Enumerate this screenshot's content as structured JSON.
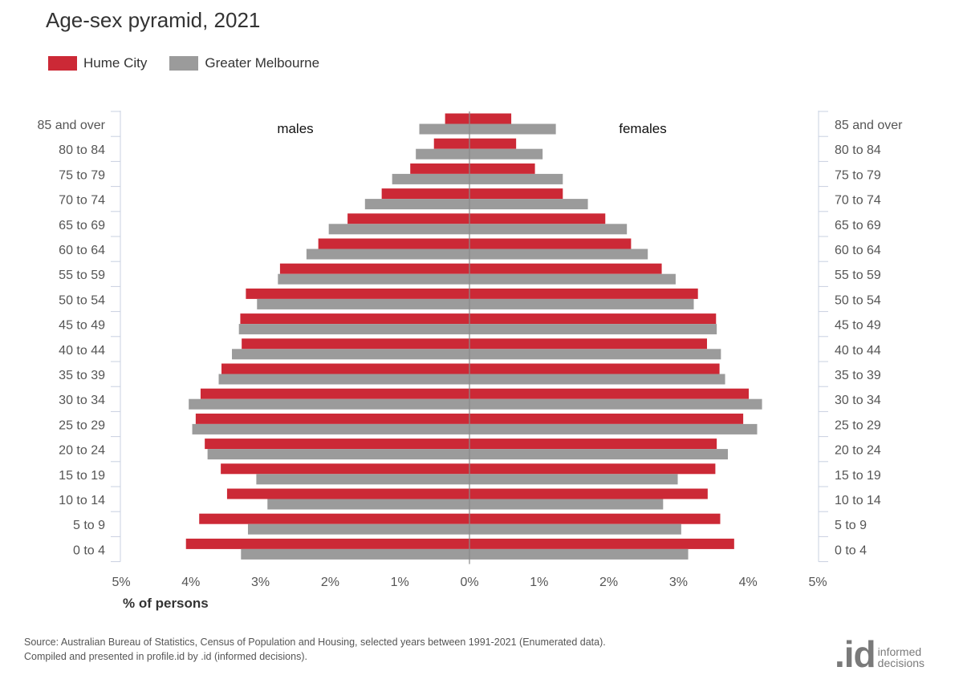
{
  "chart_data": {
    "type": "bar",
    "orientation": "horizontal-pyramid",
    "title": "Age-sex pyramid, 2021",
    "xlabel": "% of persons",
    "left_label": "males",
    "right_label": "females",
    "xlim": [
      0,
      5
    ],
    "ticks": [
      "5%",
      "4%",
      "3%",
      "2%",
      "1%",
      "0%",
      "1%",
      "2%",
      "3%",
      "4%",
      "5%"
    ],
    "categories": [
      "85 and over",
      "80 to 84",
      "75 to 79",
      "70 to 74",
      "65 to 69",
      "60 to 64",
      "55 to 59",
      "50 to 54",
      "45 to 49",
      "40 to 44",
      "35 to 39",
      "30 to 34",
      "25 to 29",
      "20 to 24",
      "15 to 19",
      "10 to 14",
      "5 to 9",
      "0 to 4"
    ],
    "series": [
      {
        "name": "Hume City",
        "color": "#cc2936",
        "males": [
          0.35,
          0.51,
          0.85,
          1.26,
          1.75,
          2.17,
          2.72,
          3.21,
          3.29,
          3.27,
          3.56,
          3.86,
          3.93,
          3.8,
          3.57,
          3.48,
          3.88,
          4.07
        ],
        "females": [
          0.6,
          0.67,
          0.94,
          1.34,
          1.95,
          2.32,
          2.76,
          3.28,
          3.54,
          3.41,
          3.59,
          4.01,
          3.93,
          3.55,
          3.53,
          3.42,
          3.6,
          3.8
        ]
      },
      {
        "name": "Greater Melbourne",
        "color": "#9b9b9b",
        "males": [
          0.72,
          0.77,
          1.11,
          1.5,
          2.02,
          2.34,
          2.75,
          3.05,
          3.31,
          3.41,
          3.6,
          4.03,
          3.98,
          3.76,
          3.06,
          2.9,
          3.18,
          3.28
        ],
        "females": [
          1.24,
          1.05,
          1.34,
          1.7,
          2.26,
          2.56,
          2.96,
          3.22,
          3.55,
          3.61,
          3.67,
          4.2,
          4.13,
          3.71,
          2.99,
          2.78,
          3.04,
          3.14
        ]
      }
    ]
  },
  "footer": {
    "source": "Source: Australian Bureau of Statistics, Census of Population and Housing, selected years between 1991-2021 (Enumerated data).",
    "compiled": "Compiled and presented in profile.id by .id (informed decisions)."
  },
  "logo": {
    "mark": ".id",
    "line1": "informed",
    "line2": "decisions"
  }
}
